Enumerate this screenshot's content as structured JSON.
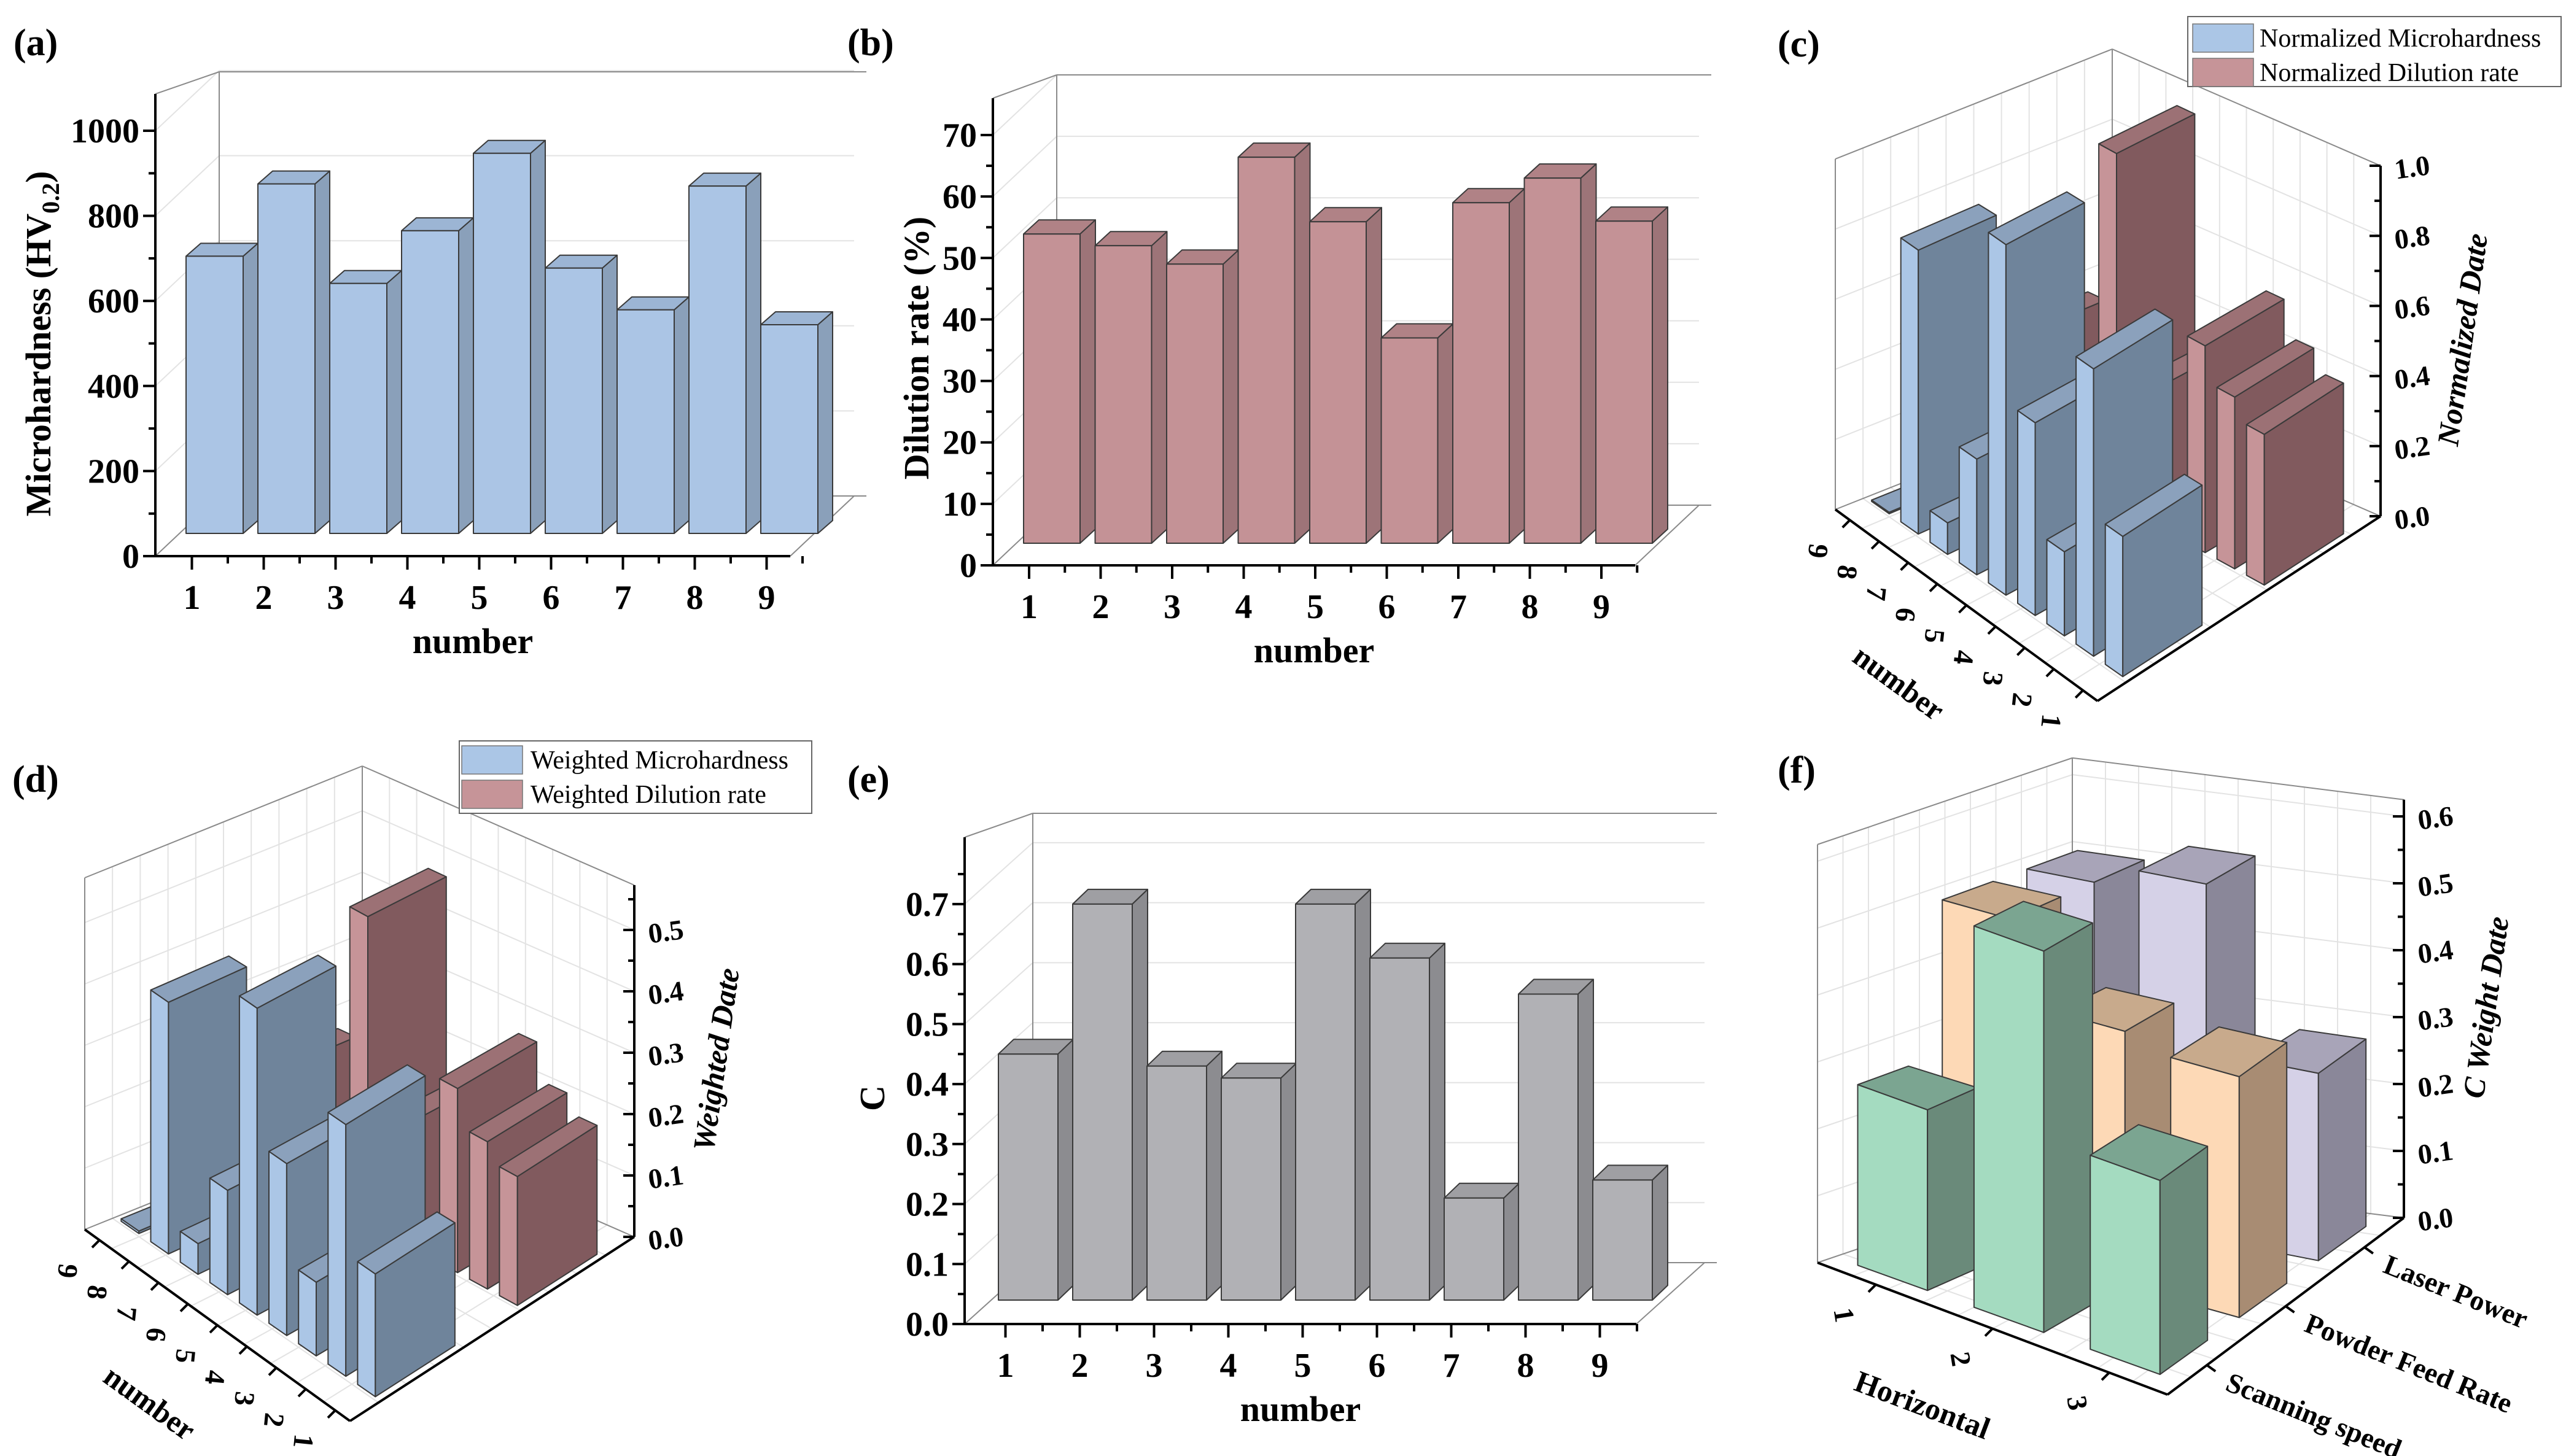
{
  "chart_data": [
    {
      "id": "a",
      "panel_label": "(a)",
      "type": "bar",
      "categories": [
        "1",
        "2",
        "3",
        "4",
        "5",
        "6",
        "7",
        "8",
        "9"
      ],
      "values": [
        705,
        875,
        641,
        765,
        947,
        677,
        579,
        870,
        544
      ],
      "title": "",
      "xlabel": "number",
      "ylabel_parts": [
        "Microhardness (HV",
        "0.2",
        ")"
      ],
      "ylim": [
        0,
        1000
      ],
      "yticks": [
        "0",
        "200",
        "400",
        "600",
        "800",
        "1000"
      ],
      "grid": true,
      "colors": {
        "front": "#abc5e5",
        "side": "#8aa0ba",
        "top": "#9cb5d4"
      }
    },
    {
      "id": "b",
      "panel_label": "(b)",
      "type": "bar",
      "categories": [
        "1",
        "2",
        "3",
        "4",
        "5",
        "6",
        "7",
        "8",
        "9"
      ],
      "values": [
        53.9,
        52.0,
        49.0,
        66.4,
        55.9,
        37.0,
        59.0,
        63.0,
        56.0
      ],
      "title": "",
      "xlabel": "number",
      "ylabel_parts": [
        "Dilution rate (%)",
        "",
        ""
      ],
      "ylim": [
        0,
        70
      ],
      "yticks": [
        "0",
        "10",
        "20",
        "30",
        "40",
        "50",
        "60",
        "70"
      ],
      "grid": true,
      "colors": {
        "front": "#c49296",
        "side": "#9d7478",
        "top": "#b08286"
      }
    },
    {
      "id": "c",
      "panel_label": "(c)",
      "type": "bar3d",
      "categories": [
        "1",
        "2",
        "3",
        "4",
        "5",
        "6",
        "7",
        "8",
        "9"
      ],
      "series": [
        {
          "name": "Normalized Microhardness",
          "values": [
            0.4,
            0.82,
            0.24,
            0.55,
            1.0,
            0.33,
            0.09,
            0.81,
            0.0
          ],
          "colors": [
            "#abc6e6",
            "#6f849b",
            "#8ba1bc"
          ]
        },
        {
          "name": "Normalized Dilution rate",
          "values": [
            0.43,
            0.49,
            0.59,
            0.0,
            0.36,
            1.0,
            0.25,
            0.12,
            0.35
          ],
          "colors": [
            "#c69498",
            "#815a5e",
            "#9c7175"
          ]
        }
      ],
      "xlabel": "number",
      "zlabel": "Normalized Date",
      "zlim": [
        0,
        1.0
      ],
      "zticks": [
        "0.0",
        "0.2",
        "0.4",
        "0.6",
        "0.8",
        "1.0"
      ],
      "legend": "top-right",
      "grid": true
    },
    {
      "id": "d",
      "panel_label": "(d)",
      "type": "bar3d",
      "categories": [
        "1",
        "2",
        "3",
        "4",
        "5",
        "6",
        "7",
        "8",
        "9"
      ],
      "series": [
        {
          "name": "Weighted Microhardness",
          "values": [
            0.2,
            0.41,
            0.12,
            0.28,
            0.5,
            0.17,
            0.05,
            0.41,
            0.0
          ],
          "colors": [
            "#abc6e6",
            "#6f849b",
            "#8ba1bc"
          ]
        },
        {
          "name": "Weighted Dilution rate",
          "values": [
            0.21,
            0.24,
            0.3,
            0.0,
            0.18,
            0.5,
            0.12,
            0.06,
            0.17
          ],
          "colors": [
            "#c69498",
            "#815a5e",
            "#9c7175"
          ]
        }
      ],
      "xlabel": "number",
      "zlabel": "Weighted Date",
      "zlim": [
        0,
        0.57
      ],
      "zticks": [
        "0.0",
        "0.1",
        "0.2",
        "0.3",
        "0.4",
        "0.5"
      ],
      "legend": "top-right",
      "grid": true
    },
    {
      "id": "e",
      "panel_label": "(e)",
      "type": "bar",
      "categories": [
        "1",
        "2",
        "3",
        "4",
        "5",
        "6",
        "7",
        "8",
        "9"
      ],
      "values": [
        0.45,
        0.7,
        0.43,
        0.41,
        0.7,
        0.61,
        0.21,
        0.55,
        0.24
      ],
      "title": "",
      "xlabel": "number",
      "ylabel_parts": [
        "C",
        "",
        ""
      ],
      "ylim": [
        0,
        0.75
      ],
      "yticks": [
        "0.0",
        "0.1",
        "0.2",
        "0.3",
        "0.4",
        "0.5",
        "0.6",
        "0.7"
      ],
      "grid": true,
      "colors": {
        "front": "#b1b1b5",
        "side": "#8c8c90",
        "top": "#9f9fa3"
      }
    },
    {
      "id": "f",
      "panel_label": "(f)",
      "type": "bar3d",
      "categories": [
        "1",
        "2",
        "3"
      ],
      "series": [
        {
          "name": "Scanning speed",
          "values": [
            0.27,
            0.57,
            0.29
          ],
          "colors": [
            "#a4dbc0",
            "#6a8a7a",
            "#7ba591"
          ]
        },
        {
          "name": "Powder Feed Rate",
          "values": [
            0.5,
            0.38,
            0.36
          ],
          "colors": [
            "#fdd9b6",
            "#a88c73",
            "#c8aa8c"
          ]
        },
        {
          "name": "Laser Power",
          "values": [
            0.5,
            0.53,
            0.28
          ],
          "colors": [
            "#d5d1e7",
            "#8a8799",
            "#a8a4b8"
          ]
        }
      ],
      "xlabel": "Horizontal",
      "zlabel": "C Weight Date",
      "zlim": [
        0,
        0.6
      ],
      "zticks": [
        "0.0",
        "0.1",
        "0.2",
        "0.3",
        "0.4",
        "0.5",
        "0.6"
      ],
      "legend": "none",
      "grid": true
    }
  ]
}
